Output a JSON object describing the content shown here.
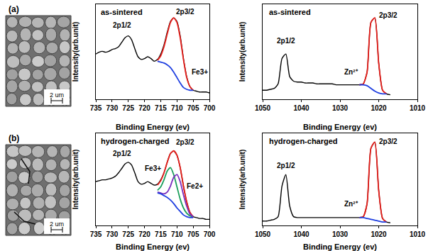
{
  "figure": {
    "panels": [
      {
        "label": "(a)",
        "scale_bar": "2 um"
      },
      {
        "label": "(b)",
        "scale_bar": "2 um"
      }
    ]
  },
  "chart_data": [
    {
      "type": "line",
      "title": "as-sintered",
      "xlabel": "Binding Energy (ev)",
      "ylabel": "Intensity(arb.unit)",
      "x": [
        735,
        734,
        733,
        732,
        731,
        730,
        729,
        728,
        727,
        726,
        725,
        724,
        723,
        722,
        721,
        720,
        719,
        718,
        717,
        716,
        715,
        714,
        713,
        712,
        711,
        710,
        709,
        708,
        707,
        706,
        705,
        704,
        703,
        702,
        701,
        700
      ],
      "xlim": [
        735,
        700
      ],
      "xticks": [
        735,
        730,
        725,
        720,
        715,
        710,
        705,
        700
      ],
      "ylim": [
        0,
        1.05
      ],
      "tick_labels": "x",
      "grid": false,
      "series": [
        {
          "color": "#000000",
          "values": [
            0.5,
            0.52,
            0.53,
            0.52,
            0.53,
            0.55,
            0.56,
            0.58,
            0.63,
            0.68,
            0.7,
            0.66,
            0.56,
            0.47,
            0.44,
            0.45,
            0.47,
            0.45,
            0.42,
            0.44,
            0.5,
            0.6,
            0.74,
            0.86,
            0.9,
            0.86,
            0.7,
            0.45,
            0.25,
            0.14,
            0.1,
            0.09,
            0.08,
            0.08,
            0.08,
            0.07
          ]
        },
        {
          "color": "#e8201c",
          "values": [
            null,
            null,
            null,
            null,
            null,
            null,
            null,
            null,
            null,
            null,
            null,
            null,
            null,
            null,
            null,
            null,
            null,
            null,
            null,
            0.43,
            0.48,
            0.58,
            0.72,
            0.85,
            0.9,
            0.85,
            0.68,
            0.44,
            0.24,
            0.14,
            0.1,
            null,
            null,
            null,
            null,
            null
          ]
        },
        {
          "color": "#1f3fe0",
          "values": [
            null,
            null,
            null,
            null,
            null,
            null,
            null,
            null,
            null,
            null,
            null,
            null,
            null,
            null,
            null,
            null,
            null,
            null,
            null,
            0.42,
            0.41,
            0.4,
            0.38,
            0.35,
            0.3,
            0.24,
            0.18,
            0.13,
            0.11,
            0.1,
            0.1,
            null,
            null,
            null,
            null,
            null
          ]
        }
      ],
      "annotations": [
        {
          "text": "2p1/2",
          "x": 727,
          "y": 0.82
        },
        {
          "text": "2p3/2",
          "x": 707.5,
          "y": 0.97
        },
        {
          "text": "Fe3+",
          "x": 703,
          "y": 0.3
        }
      ]
    },
    {
      "type": "line",
      "title": "as-sintered",
      "xlabel": "Binding Energy (ev)",
      "ylabel": "Intensity(arb.unit)",
      "x": [
        1050,
        1049,
        1048,
        1047,
        1046,
        1045,
        1044,
        1043,
        1042,
        1041,
        1040,
        1039,
        1038,
        1037,
        1036,
        1035,
        1034,
        1033,
        1032,
        1031,
        1030,
        1029,
        1028,
        1027,
        1026,
        1025,
        1024,
        1023,
        1022,
        1021,
        1020,
        1019,
        1018,
        1017,
        1016,
        1015,
        1014,
        1013,
        1012,
        1011,
        1010
      ],
      "xlim": [
        1050,
        1010
      ],
      "xticks": [
        1050,
        1040,
        1030,
        1020,
        1010
      ],
      "ylim": [
        0,
        1.05
      ],
      "tick_labels": "x",
      "grid": false,
      "series": [
        {
          "color": "#000000",
          "values": [
            0.1,
            0.1,
            0.11,
            0.12,
            0.17,
            0.45,
            0.5,
            0.25,
            0.2,
            0.19,
            0.19,
            0.18,
            0.18,
            0.18,
            0.17,
            0.17,
            0.17,
            0.17,
            0.17,
            0.16,
            0.16,
            0.16,
            0.16,
            0.16,
            0.16,
            0.16,
            0.17,
            0.3,
            0.85,
            0.9,
            0.4,
            0.1,
            0.06,
            0.05,
            null,
            null,
            null,
            null,
            null,
            null,
            null
          ]
        },
        {
          "color": "#e8201c",
          "values": [
            null,
            null,
            null,
            null,
            null,
            null,
            null,
            null,
            null,
            null,
            null,
            null,
            null,
            null,
            null,
            null,
            null,
            null,
            null,
            null,
            null,
            null,
            null,
            null,
            null,
            0.16,
            0.17,
            0.3,
            0.85,
            0.9,
            0.4,
            0.1,
            0.06,
            null,
            null,
            null,
            null,
            null,
            null,
            null,
            null
          ]
        },
        {
          "color": "#1f3fe0",
          "values": [
            null,
            null,
            null,
            null,
            null,
            null,
            null,
            null,
            null,
            null,
            null,
            null,
            null,
            null,
            null,
            null,
            null,
            null,
            null,
            null,
            null,
            null,
            null,
            null,
            null,
            0.16,
            0.16,
            0.15,
            0.12,
            0.09,
            0.07,
            0.06,
            0.06,
            null,
            null,
            null,
            null,
            null,
            null,
            null,
            null
          ]
        }
      ],
      "annotations": [
        {
          "text": "2p1/2",
          "x": 1044,
          "y": 0.65
        },
        {
          "text": "2p3/2",
          "x": 1017.5,
          "y": 0.93
        },
        {
          "text": "Zn²⁺",
          "x": 1027,
          "y": 0.3
        }
      ]
    },
    {
      "type": "line",
      "title": "hydrogen-charged",
      "xlabel": "Binding Energy (ev)",
      "ylabel": "Intensity(arb.unit)",
      "x": [
        735,
        734,
        733,
        732,
        731,
        730,
        729,
        728,
        727,
        726,
        725,
        724,
        723,
        722,
        721,
        720,
        719,
        718,
        717,
        716,
        715,
        714,
        713,
        712,
        711,
        710,
        709,
        708,
        707,
        706,
        705,
        704,
        703,
        702,
        701,
        700
      ],
      "xlim": [
        735,
        700
      ],
      "xticks": [
        735,
        730,
        725,
        720,
        715,
        710,
        705,
        700
      ],
      "ylim": [
        0,
        1.05
      ],
      "tick_labels": "x",
      "grid": false,
      "series": [
        {
          "color": "#000000",
          "values": [
            0.5,
            0.51,
            0.52,
            0.52,
            0.53,
            0.54,
            0.56,
            0.6,
            0.65,
            0.7,
            0.72,
            0.69,
            0.6,
            0.5,
            0.47,
            0.48,
            0.5,
            0.48,
            0.46,
            0.47,
            0.52,
            0.6,
            0.72,
            0.82,
            0.85,
            0.8,
            0.66,
            0.45,
            0.27,
            0.15,
            0.1,
            0.09,
            0.08,
            0.08,
            0.07,
            0.07
          ]
        },
        {
          "color": "#e8201c",
          "values": [
            null,
            null,
            null,
            null,
            null,
            null,
            null,
            null,
            null,
            null,
            null,
            null,
            null,
            null,
            null,
            null,
            null,
            null,
            null,
            0.46,
            0.51,
            0.6,
            0.72,
            0.82,
            0.85,
            0.8,
            0.66,
            0.45,
            0.27,
            0.15,
            0.1,
            null,
            null,
            null,
            null,
            null
          ]
        },
        {
          "color": "#1a9e5a",
          "values": [
            null,
            null,
            null,
            null,
            null,
            null,
            null,
            null,
            null,
            null,
            null,
            null,
            null,
            null,
            null,
            null,
            null,
            null,
            null,
            0.4,
            0.44,
            0.52,
            0.62,
            0.66,
            0.58,
            0.44,
            0.3,
            0.2,
            0.14,
            0.11,
            0.1,
            null,
            null,
            null,
            null,
            null
          ]
        },
        {
          "color": "#7b2fbe",
          "values": [
            null,
            null,
            null,
            null,
            null,
            null,
            null,
            null,
            null,
            null,
            null,
            null,
            null,
            null,
            null,
            null,
            null,
            null,
            null,
            0.38,
            0.37,
            0.36,
            0.38,
            0.45,
            0.55,
            0.58,
            0.5,
            0.35,
            0.22,
            0.13,
            0.1,
            null,
            null,
            null,
            null,
            null
          ]
        },
        {
          "color": "#1f3fe0",
          "values": [
            null,
            null,
            null,
            null,
            null,
            null,
            null,
            null,
            null,
            null,
            null,
            null,
            null,
            null,
            null,
            null,
            null,
            null,
            null,
            0.37,
            0.36,
            0.34,
            0.32,
            0.29,
            0.25,
            0.2,
            0.16,
            0.12,
            0.1,
            0.09,
            0.09,
            null,
            null,
            null,
            null,
            null
          ]
        }
      ],
      "annotations": [
        {
          "text": "2p1/2",
          "x": 727,
          "y": 0.82
        },
        {
          "text": "2p3/2",
          "x": 707.5,
          "y": 0.95
        },
        {
          "text": "Fe3+",
          "x": 717.5,
          "y": 0.65
        },
        {
          "text": "Fe2+",
          "x": 704.5,
          "y": 0.45
        }
      ]
    },
    {
      "type": "line",
      "title": "hydrogen-charged",
      "xlabel": "Binding Energy (ev)",
      "ylabel": "Intensity(arb.unit)",
      "x": [
        1050,
        1049,
        1048,
        1047,
        1046,
        1045,
        1044,
        1043,
        1042,
        1041,
        1040,
        1039,
        1038,
        1037,
        1036,
        1035,
        1034,
        1033,
        1032,
        1031,
        1030,
        1029,
        1028,
        1027,
        1026,
        1025,
        1024,
        1023,
        1022,
        1021,
        1020,
        1019,
        1018,
        1017,
        1016,
        1015,
        1014,
        1013,
        1012,
        1011,
        1010
      ],
      "xlim": [
        1050,
        1010
      ],
      "xticks": [
        1050,
        1040,
        1030,
        1020,
        1010
      ],
      "ylim": [
        0,
        1.05
      ],
      "tick_labels": "x",
      "grid": false,
      "series": [
        {
          "color": "#000000",
          "values": [
            0.05,
            0.05,
            0.06,
            0.07,
            0.1,
            0.45,
            0.58,
            0.22,
            0.1,
            0.09,
            0.09,
            0.09,
            0.09,
            0.09,
            0.09,
            0.09,
            0.09,
            0.09,
            0.09,
            0.09,
            0.09,
            0.09,
            0.09,
            0.09,
            0.09,
            0.09,
            0.1,
            0.25,
            0.88,
            0.95,
            0.4,
            0.08,
            0.04,
            0.03,
            null,
            null,
            null,
            null,
            null,
            null,
            null
          ]
        },
        {
          "color": "#e8201c",
          "values": [
            null,
            null,
            null,
            null,
            null,
            null,
            null,
            null,
            null,
            null,
            null,
            null,
            null,
            null,
            null,
            null,
            null,
            null,
            null,
            null,
            null,
            null,
            null,
            null,
            null,
            0.09,
            0.1,
            0.25,
            0.88,
            0.95,
            0.4,
            0.08,
            0.04,
            null,
            null,
            null,
            null,
            null,
            null,
            null,
            null
          ]
        },
        {
          "color": "#1f3fe0",
          "values": [
            null,
            null,
            null,
            null,
            null,
            null,
            null,
            null,
            null,
            null,
            null,
            null,
            null,
            null,
            null,
            null,
            null,
            null,
            null,
            null,
            null,
            null,
            null,
            null,
            null,
            0.09,
            0.09,
            0.08,
            0.07,
            0.06,
            0.05,
            0.04,
            0.04,
            null,
            null,
            null,
            null,
            null,
            null,
            null,
            null
          ]
        }
      ],
      "annotations": [
        {
          "text": "2p1/2",
          "x": 1044,
          "y": 0.68
        },
        {
          "text": "2p3/2",
          "x": 1017.5,
          "y": 0.96
        },
        {
          "text": "Zn²⁺",
          "x": 1027,
          "y": 0.25
        }
      ]
    }
  ]
}
